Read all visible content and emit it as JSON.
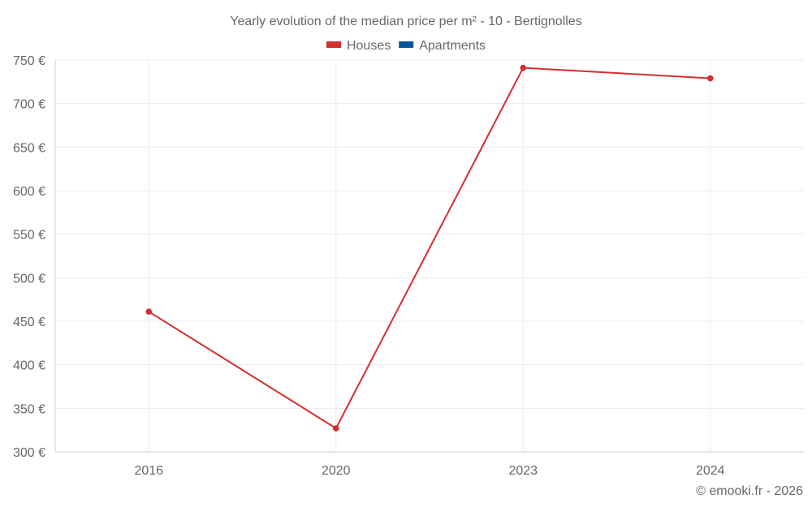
{
  "chart_data": {
    "type": "line",
    "title": "Yearly evolution of the median price per m² - 10 - Bertignolles",
    "categories": [
      "2016",
      "2020",
      "2023",
      "2024"
    ],
    "series": [
      {
        "name": "Houses",
        "color": "#d32f2f",
        "values": [
          461,
          327,
          741,
          729
        ]
      },
      {
        "name": "Apartments",
        "color": "#01579b",
        "values": [
          null,
          null,
          null,
          null
        ]
      }
    ],
    "ylim": [
      300,
      750
    ],
    "yticks": [
      300,
      350,
      400,
      450,
      500,
      550,
      600,
      650,
      700,
      750
    ],
    "yticks_labels": [
      "300 €",
      "350 €",
      "400 €",
      "450 €",
      "500 €",
      "550 €",
      "600 €",
      "650 €",
      "700 €",
      "750 €"
    ],
    "grid": true,
    "legend_position": "top-center",
    "xlabel": "",
    "ylabel": ""
  },
  "credit": "© emooki.fr - 2026"
}
